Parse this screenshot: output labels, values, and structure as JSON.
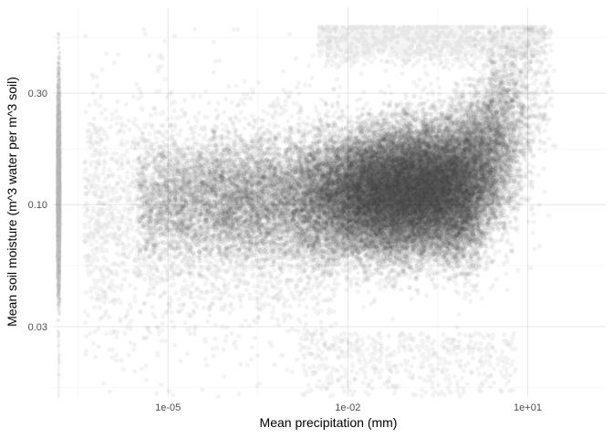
{
  "chart_data": {
    "type": "scatter",
    "title": "",
    "xlabel": "Mean precipitation (mm)",
    "ylabel": "Mean soil moisture (m^3 water per m^3 soil)",
    "x_scale": "log10",
    "y_scale": "log10",
    "xlim": [
      1.2e-07,
      200
    ],
    "ylim": [
      0.015,
      0.7
    ],
    "x_ticks": [
      {
        "value": 1e-05,
        "label": "1e-05"
      },
      {
        "value": 0.01,
        "label": "1e-02"
      },
      {
        "value": 10,
        "label": "1e+01"
      }
    ],
    "y_ticks": [
      {
        "value": 0.03,
        "label": "0.03"
      },
      {
        "value": 0.1,
        "label": "0.10"
      },
      {
        "value": 0.3,
        "label": "0.30"
      }
    ],
    "grid": true,
    "legend": "none",
    "point_color": "#1a1a1a",
    "point_alpha": 0.05,
    "density_regions": [
      {
        "name": "main-cloud",
        "x_range": [
          0.0001,
          40
        ],
        "y_range": [
          0.03,
          0.55
        ],
        "peak_x": 2,
        "peak_y": 0.12
      },
      {
        "name": "zero-precipitation-column",
        "x": 1.5e-07,
        "y_range": [
          0.04,
          0.55
        ]
      }
    ]
  }
}
